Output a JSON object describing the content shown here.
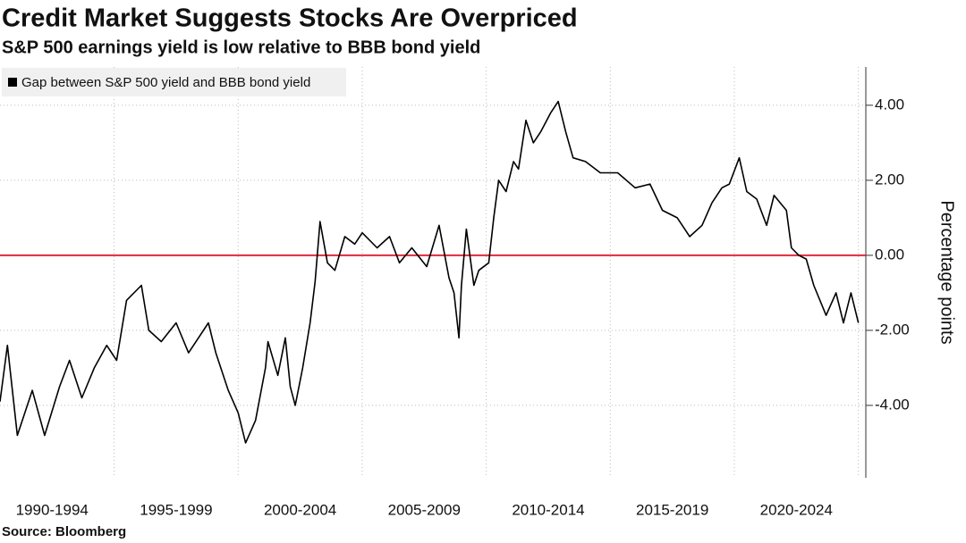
{
  "chart_data": {
    "type": "line",
    "title": "Credit Market Suggests Stocks Are Overpriced",
    "subtitle": "S&P 500 earnings yield is low relative to BBB bond yield",
    "y_label": "Percentage points",
    "source": "Source: Bloomberg",
    "legend": "upper left",
    "grid": true,
    "reference_line": {
      "value": 0,
      "color": "#e0293b"
    },
    "xlim": [
      1990.4,
      2025.3
    ],
    "xticks": [
      {
        "value": 1992.5,
        "label": "1990-1994"
      },
      {
        "value": 1997.5,
        "label": "1995-1999"
      },
      {
        "value": 2002.5,
        "label": "2000-2004"
      },
      {
        "value": 2007.5,
        "label": "2005-2009"
      },
      {
        "value": 2012.5,
        "label": "2010-2014"
      },
      {
        "value": 2017.5,
        "label": "2015-2019"
      },
      {
        "value": 2022.5,
        "label": "2020-2024"
      }
    ],
    "xgrid": [
      1995,
      2000,
      2005,
      2010,
      2015,
      2020,
      2025
    ],
    "ylim": [
      -5.93,
      5.02
    ],
    "yticks": [
      {
        "value": 4,
        "label": "4.00"
      },
      {
        "value": 2,
        "label": "2.00"
      },
      {
        "value": 0,
        "label": "0.00"
      },
      {
        "value": -2,
        "label": "-2.00"
      },
      {
        "value": -4,
        "label": "-4.00"
      }
    ],
    "x": [
      1990.4,
      1990.7,
      1991.1,
      1991.7,
      1992.2,
      1992.8,
      1993.2,
      1993.7,
      1994.2,
      1994.7,
      1995.1,
      1995.5,
      1996.1,
      1996.4,
      1996.9,
      1997.5,
      1998.0,
      1998.8,
      1999.1,
      1999.6,
      2000.0,
      2000.3,
      2000.7,
      2001.1,
      2001.2,
      2001.6,
      2001.9,
      2002.1,
      2002.3,
      2002.6,
      2002.9,
      2003.1,
      2003.3,
      2003.6,
      2003.9,
      2004.3,
      2004.7,
      2005.0,
      2005.6,
      2006.1,
      2006.5,
      2007.0,
      2007.6,
      2008.1,
      2008.5,
      2008.7,
      2008.9,
      2009.0,
      2009.2,
      2009.5,
      2009.7,
      2010.1,
      2010.3,
      2010.5,
      2010.8,
      2011.1,
      2011.3,
      2011.6,
      2011.9,
      2012.2,
      2012.6,
      2012.9,
      2013.2,
      2013.5,
      2014.0,
      2014.6,
      2015.3,
      2016.0,
      2016.6,
      2017.1,
      2017.7,
      2018.2,
      2018.7,
      2019.1,
      2019.5,
      2019.8,
      2020.2,
      2020.5,
      2020.9,
      2021.3,
      2021.6,
      2022.1,
      2022.3,
      2022.6,
      2022.9,
      2023.2,
      2023.7,
      2024.1,
      2024.4,
      2024.7,
      2025.0
    ],
    "series": [
      {
        "name": "Gap between S&P 500 yield and BBB bond yield",
        "color": "#000000",
        "values": [
          -3.9,
          -2.4,
          -4.8,
          -3.6,
          -4.8,
          -3.5,
          -2.8,
          -3.8,
          -3.0,
          -2.4,
          -2.8,
          -1.2,
          -0.8,
          -2.0,
          -2.3,
          -1.8,
          -2.6,
          -1.8,
          -2.6,
          -3.6,
          -4.2,
          -5.0,
          -4.4,
          -3.0,
          -2.3,
          -3.2,
          -2.2,
          -3.5,
          -4.0,
          -3.0,
          -1.8,
          -0.7,
          0.9,
          -0.2,
          -0.4,
          0.5,
          0.3,
          0.6,
          0.2,
          0.5,
          -0.2,
          0.2,
          -0.3,
          0.8,
          -0.6,
          -1.0,
          -2.2,
          -0.8,
          0.7,
          -0.8,
          -0.4,
          -0.2,
          1.0,
          2.0,
          1.7,
          2.5,
          2.3,
          3.6,
          3.0,
          3.3,
          3.8,
          4.1,
          3.3,
          2.6,
          2.5,
          2.2,
          2.2,
          1.8,
          1.9,
          1.2,
          1.0,
          0.5,
          0.8,
          1.4,
          1.8,
          1.9,
          2.6,
          1.7,
          1.5,
          0.8,
          1.6,
          1.2,
          0.2,
          0.0,
          -0.1,
          -0.8,
          -1.6,
          -1.0,
          -1.8,
          -1.0,
          -1.8
        ]
      }
    ]
  }
}
